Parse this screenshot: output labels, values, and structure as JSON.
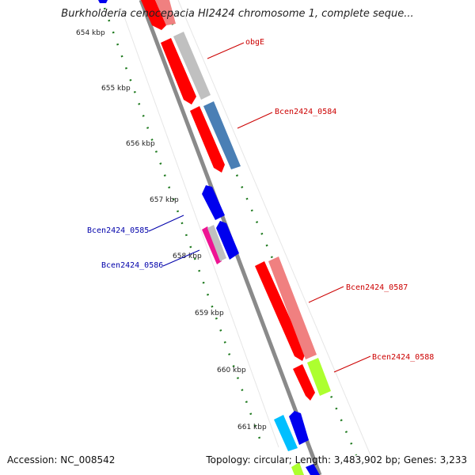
{
  "title": "Burkholderia cenocepacia HI2424 chromosome 1, complete seque...",
  "footer": {
    "accession": "Accession: NC_008542",
    "summary": "Topology: circular; Length: 3,483,902 bp; Genes: 3,233"
  },
  "kbp_labels": [
    "654 kbp",
    "655 kbp",
    "656 kbp",
    "657 kbp",
    "658 kbp",
    "659 kbp",
    "660 kbp",
    "661 kbp"
  ],
  "gene_labels": {
    "obgE": "obgE",
    "b0584": "Bcen2424_0584",
    "b0585": "Bcen2424_0585",
    "b0586": "Bcen2424_0586",
    "b0587": "Bcen2424_0587",
    "b0588": "Bcen2424_0588"
  },
  "colors": {
    "forward_label": "#cc0000",
    "reverse_label": "#0000aa",
    "backbone": "#8a8a8a",
    "tick_dots": "#1f7a1f"
  }
}
